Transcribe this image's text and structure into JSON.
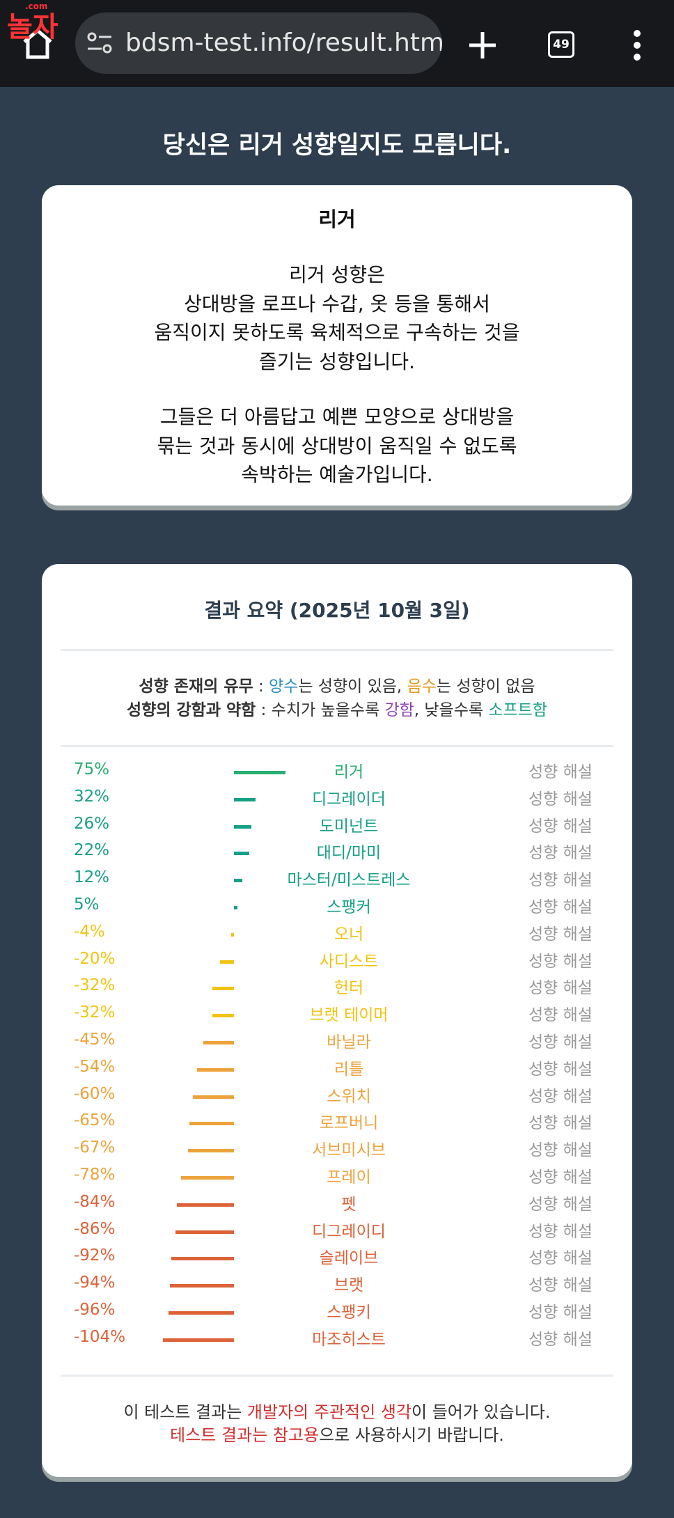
{
  "browser": {
    "logo": "놀자",
    "logo_sub": ".com",
    "url": "bdsm-test.info/result.html?",
    "tab_count": "49"
  },
  "heading": "당신은 리거 성향일지도 모릅니다.",
  "description": {
    "title": "리거",
    "paragraphs": [
      [
        "리거 성향은",
        "상대방을 로프나 수갑, 옷 등을 통해서",
        "움직이지 못하도록 육체적으로 구속하는 것을",
        "즐기는 성향입니다."
      ],
      [
        "그들은 더 아름답고 예쁜 모양으로 상대방을",
        "묶는 것과 동시에 상대방이 움직일 수 없도록",
        "속박하는 예술가입니다."
      ]
    ]
  },
  "summary": {
    "title": "결과 요약 (2025년 10월 3일)",
    "legend": [
      [
        {
          "text": "성향 존재의 유무",
          "bold": true
        },
        {
          "text": " : "
        },
        {
          "text": "양수",
          "color": "#2a8fc0"
        },
        {
          "text": "는 성향이 있음, "
        },
        {
          "text": "음수",
          "color": "#e39a1c"
        },
        {
          "text": "는 성향이 없음"
        }
      ],
      [
        {
          "text": "성향의 강함과 약함",
          "bold": true
        },
        {
          "text": " : 수치가 높을수록 "
        },
        {
          "text": "강함",
          "color": "#8e44ad"
        },
        {
          "text": ", 낮을수록 "
        },
        {
          "text": "소프트함",
          "color": "#16a085"
        }
      ]
    ],
    "link": "성향 해설",
    "results": [
      {
        "value": 75,
        "label": "75%",
        "name": "리거",
        "color": "#27ae70"
      },
      {
        "value": 32,
        "label": "32%",
        "name": "디그레이더",
        "color": "#16a085"
      },
      {
        "value": 26,
        "label": "26%",
        "name": "도미넌트",
        "color": "#16a085"
      },
      {
        "value": 22,
        "label": "22%",
        "name": "대디/마미",
        "color": "#16a085"
      },
      {
        "value": 12,
        "label": "12%",
        "name": "마스터/미스트레스",
        "color": "#16a085"
      },
      {
        "value": 5,
        "label": "5%",
        "name": "스팽커",
        "color": "#16a085"
      },
      {
        "value": -4,
        "label": "-4%",
        "name": "오너",
        "color": "#f1c40f"
      },
      {
        "value": -20,
        "label": "-20%",
        "name": "사디스트",
        "color": "#f1c40f"
      },
      {
        "value": -32,
        "label": "-32%",
        "name": "헌터",
        "color": "#f1c40f"
      },
      {
        "value": -32,
        "label": "-32%",
        "name": "브랫 테이머",
        "color": "#f1c40f"
      },
      {
        "value": -45,
        "label": "-45%",
        "name": "바닐라",
        "color": "#eda33a"
      },
      {
        "value": -54,
        "label": "-54%",
        "name": "리틀",
        "color": "#eda33a"
      },
      {
        "value": -60,
        "label": "-60%",
        "name": "스위치",
        "color": "#eda33a"
      },
      {
        "value": -65,
        "label": "-65%",
        "name": "로프버니",
        "color": "#eda33a"
      },
      {
        "value": -67,
        "label": "-67%",
        "name": "서브미시브",
        "color": "#eda33a"
      },
      {
        "value": -78,
        "label": "-78%",
        "name": "프레이",
        "color": "#eda33a"
      },
      {
        "value": -84,
        "label": "-84%",
        "name": "펫",
        "color": "#dd6238"
      },
      {
        "value": -86,
        "label": "-86%",
        "name": "디그레이디",
        "color": "#dd6238"
      },
      {
        "value": -92,
        "label": "-92%",
        "name": "슬레이브",
        "color": "#dd6238"
      },
      {
        "value": -94,
        "label": "-94%",
        "name": "브랫",
        "color": "#dd6238"
      },
      {
        "value": -96,
        "label": "-96%",
        "name": "스팽키",
        "color": "#dd6238"
      },
      {
        "value": -104,
        "label": "-104%",
        "name": "마조히스트",
        "color": "#dd6238"
      }
    ],
    "footer": [
      [
        {
          "text": "이 테스트 결과는 "
        },
        {
          "text": "개발자의 주관적인 생각",
          "color": "#d32f2f"
        },
        {
          "text": "이 들어가 있습니다."
        }
      ],
      [
        {
          "text": "테스트 결과는 참고용",
          "color": "#d32f2f"
        },
        {
          "text": "으로 사용하시기 바랍니다."
        }
      ]
    ]
  }
}
